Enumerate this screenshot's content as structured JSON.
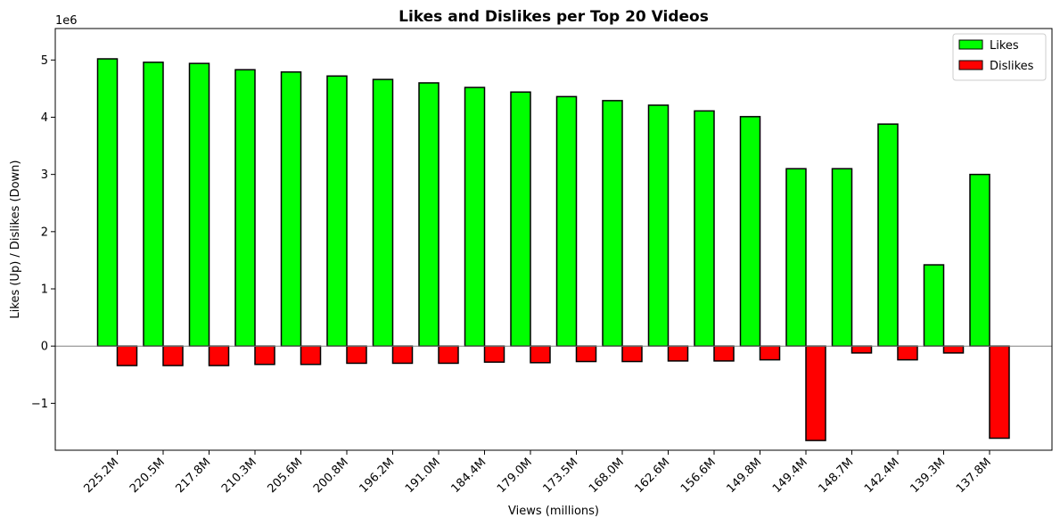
{
  "chart_data": {
    "type": "bar",
    "title": "Likes and Dislikes per Top 20 Videos",
    "xlabel": "Views (millions)",
    "ylabel": "Likes (Up) / Dislikes (Down)",
    "y_scale_label": "1e6",
    "ylim": [
      -1.82,
      5.55
    ],
    "yticks": [
      -1,
      0,
      1,
      2,
      3,
      4,
      5
    ],
    "ytick_labels": [
      "−1",
      "0",
      "1",
      "2",
      "3",
      "4",
      "5"
    ],
    "categories": [
      "225.2M",
      "220.5M",
      "217.8M",
      "210.3M",
      "205.6M",
      "200.8M",
      "196.2M",
      "191.0M",
      "184.4M",
      "179.0M",
      "173.5M",
      "168.0M",
      "162.6M",
      "156.6M",
      "149.8M",
      "149.4M",
      "148.7M",
      "142.4M",
      "139.3M",
      "137.8M"
    ],
    "series": [
      {
        "name": "Likes",
        "color": "#00ff00",
        "values": [
          5.02,
          4.96,
          4.94,
          4.83,
          4.79,
          4.72,
          4.66,
          4.6,
          4.52,
          4.44,
          4.36,
          4.29,
          4.21,
          4.11,
          4.01,
          3.1,
          3.1,
          3.88,
          1.42,
          3.0
        ]
      },
      {
        "name": "Dislikes",
        "color": "#ff0000",
        "values": [
          -0.34,
          -0.34,
          -0.34,
          -0.32,
          -0.32,
          -0.3,
          -0.3,
          -0.3,
          -0.28,
          -0.29,
          -0.27,
          -0.27,
          -0.26,
          -0.26,
          -0.24,
          -1.65,
          -0.12,
          -0.24,
          -0.12,
          -1.61
        ]
      }
    ],
    "legend": {
      "position": "top-right",
      "entries": [
        "Likes",
        "Dislikes"
      ]
    },
    "grid": false,
    "zero_line": true
  }
}
